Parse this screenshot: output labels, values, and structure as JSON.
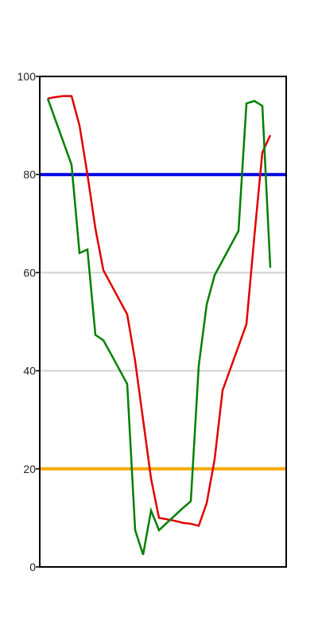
{
  "chart_data": {
    "type": "line",
    "ylim": [
      0,
      100
    ],
    "y_ticks": [
      "0",
      "20",
      "40",
      "60",
      "80",
      "100"
    ],
    "grid": "horizontal",
    "x": [
      1,
      2,
      3,
      4,
      5,
      6,
      7,
      8,
      9,
      10,
      11,
      12,
      13,
      14,
      15,
      16,
      17,
      18,
      19,
      20,
      21,
      22,
      23,
      24,
      25,
      26,
      27,
      28,
      29,
      30
    ],
    "series": [
      {
        "color": "#e00000",
        "values": [
          95.5,
          95.8,
          96.0,
          96.0,
          90.0,
          80.0,
          69.0,
          60.5,
          57.5,
          54.5,
          51.5,
          42.0,
          30.0,
          18.0,
          10.0,
          9.7,
          9.4,
          9.0,
          8.8,
          8.4,
          13.0,
          22.0,
          36.0,
          40.5,
          45.0,
          49.5,
          67.5,
          84.5,
          88.0,
          88.0
        ],
        "x_start": 1,
        "x_end": 29
      },
      {
        "color": "#008000",
        "values": [
          95.5,
          91.0,
          86.5,
          82.0,
          64.0,
          64.7,
          47.3,
          46.2,
          43.3,
          40.3,
          37.3,
          7.5,
          2.5,
          11.5,
          7.5,
          9.0,
          10.5,
          12.0,
          13.4,
          41.0,
          53.5,
          59.5,
          62.5,
          65.5,
          68.5,
          94.5,
          95.0,
          94.0,
          61.0,
          61.0
        ],
        "x_start": 1,
        "x_end": 29
      }
    ],
    "reference_lines": [
      {
        "y": 80,
        "color": "#0000e0"
      },
      {
        "y": 20,
        "color": "#f5a800"
      }
    ]
  }
}
